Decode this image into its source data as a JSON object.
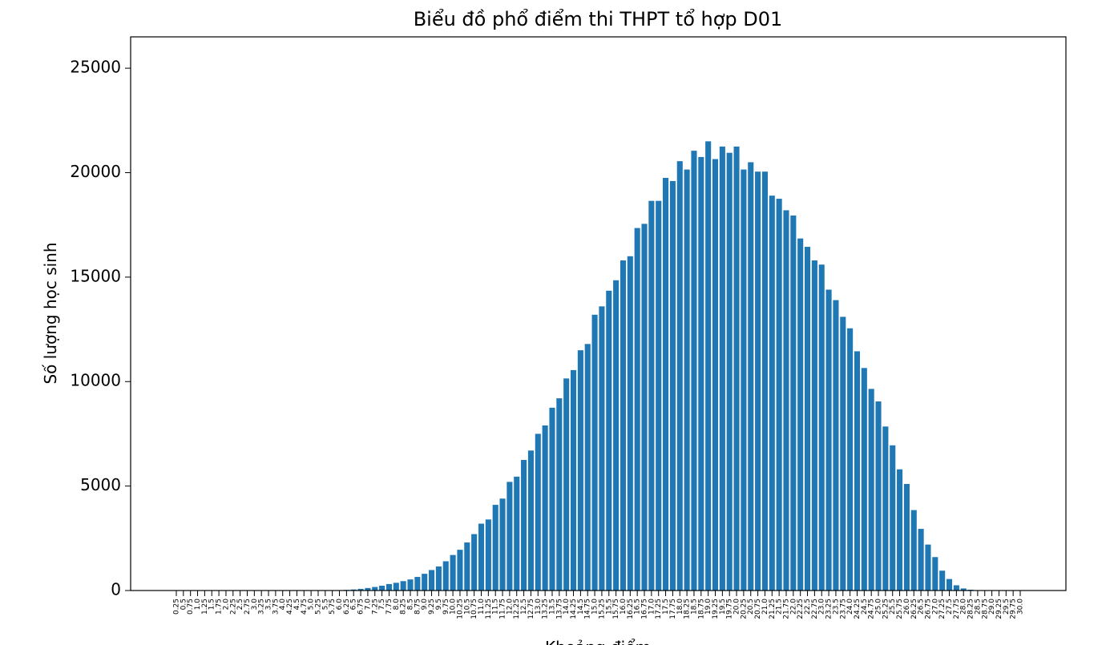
{
  "chart_data": {
    "type": "bar",
    "title": "Biểu đồ phổ điểm thi THPT tổ hợp D01",
    "x_label": "Khoảng điểm",
    "y_label": "Số lượng học sinh",
    "color": "#1f77b4",
    "categories": [
      "0.25",
      "0.5",
      "0.75",
      "1.0",
      "1.25",
      "1.5",
      "1.75",
      "2.0",
      "2.25",
      "2.5",
      "2.75",
      "3.0",
      "3.25",
      "3.5",
      "3.75",
      "4.0",
      "4.25",
      "4.5",
      "4.75",
      "5.0",
      "5.25",
      "5.5",
      "5.75",
      "6.0",
      "6.25",
      "6.5",
      "6.75",
      "7.0",
      "7.25",
      "7.5",
      "7.75",
      "8.0",
      "8.25",
      "8.5",
      "8.75",
      "9.0",
      "9.25",
      "9.5",
      "9.75",
      "10.0",
      "10.25",
      "10.5",
      "10.75",
      "11.0",
      "11.25",
      "11.5",
      "11.75",
      "12.0",
      "12.25",
      "12.5",
      "12.75",
      "13.0",
      "13.25",
      "13.5",
      "13.75",
      "14.0",
      "14.25",
      "14.5",
      "14.75",
      "15.0",
      "15.25",
      "15.5",
      "15.75",
      "16.0",
      "16.25",
      "16.5",
      "16.75",
      "17.0",
      "17.25",
      "17.5",
      "17.75",
      "18.0",
      "18.25",
      "18.5",
      "18.75",
      "19.0",
      "19.25",
      "19.5",
      "19.75",
      "20.0",
      "20.25",
      "20.5",
      "20.75",
      "21.0",
      "21.25",
      "21.5",
      "21.75",
      "22.0",
      "22.25",
      "22.5",
      "22.75",
      "23.0",
      "23.25",
      "23.5",
      "23.75",
      "24.0",
      "24.25",
      "24.5",
      "24.75",
      "25.0",
      "25.25",
      "25.5",
      "25.75",
      "26.0",
      "26.25",
      "26.5",
      "26.75",
      "27.0",
      "27.25",
      "27.5",
      "27.75",
      "28.0",
      "28.25",
      "28.5",
      "28.75",
      "29.0",
      "29.25",
      "29.5",
      "29.75",
      "30.0"
    ],
    "values": [
      0,
      0,
      0,
      0,
      0,
      0,
      0,
      0,
      0,
      0,
      0,
      0,
      0,
      0,
      0,
      0,
      0,
      0,
      0,
      5,
      8,
      10,
      15,
      20,
      30,
      50,
      80,
      120,
      170,
      230,
      310,
      370,
      450,
      530,
      650,
      800,
      980,
      1150,
      1400,
      1700,
      1950,
      2300,
      2700,
      3200,
      3400,
      4100,
      4400,
      5200,
      5450,
      6250,
      6700,
      7500,
      7900,
      8750,
      9200,
      10150,
      10550,
      11500,
      11800,
      13200,
      13600,
      14350,
      14850,
      15800,
      16000,
      17350,
      17550,
      18650,
      18650,
      19750,
      19600,
      20550,
      20150,
      21050,
      20750,
      21500,
      20650,
      21250,
      20950,
      21250,
      20150,
      20500,
      20050,
      20050,
      18900,
      18750,
      18200,
      17950,
      16850,
      16450,
      15800,
      15600,
      14400,
      13900,
      13100,
      12550,
      11450,
      10650,
      9650,
      9050,
      7850,
      6950,
      5800,
      5100,
      3850,
      2950,
      2200,
      1600,
      950,
      550,
      250,
      100,
      40,
      10,
      0,
      0,
      0,
      0,
      0,
      0
    ],
    "ylim": [
      0,
      26500
    ],
    "yticks": [
      0,
      5000,
      10000,
      15000,
      20000,
      25000
    ]
  }
}
